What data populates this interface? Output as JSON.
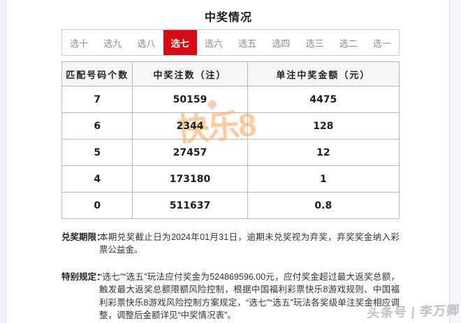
{
  "page": {
    "title": "中奖情况"
  },
  "tabs": {
    "items": [
      {
        "label": "选十",
        "selected": false
      },
      {
        "label": "选九",
        "selected": false
      },
      {
        "label": "选八",
        "selected": false
      },
      {
        "label": "选七",
        "selected": true
      },
      {
        "label": "选六",
        "selected": false
      },
      {
        "label": "选五",
        "selected": false
      },
      {
        "label": "选四",
        "selected": false
      },
      {
        "label": "选三",
        "selected": false
      },
      {
        "label": "选二",
        "selected": false
      },
      {
        "label": "选一",
        "selected": false
      }
    ]
  },
  "table": {
    "headers": [
      "匹配号码个数",
      "中奖注数（注）",
      "单注中奖金额（元）"
    ],
    "rows": [
      [
        "7",
        "50159",
        "4475"
      ],
      [
        "6",
        "2344",
        "128"
      ],
      [
        "5",
        "27457",
        "12"
      ],
      [
        "4",
        "173180",
        "1"
      ],
      [
        "0",
        "511637",
        "0.8"
      ]
    ]
  },
  "notes": [
    {
      "label": "兑奖期限：",
      "text": "本期兑奖截止日为2024年01月31日，逾期未兑奖视为弃奖，弃奖奖金纳入彩票公益金。"
    },
    {
      "label": "特别规定：",
      "text": "“选七”“选五”玩法应付奖金为524869596.00元，应付奖金超过最大返奖总额，触发最大返奖总额限额风险控制，根据中国福利彩票快乐8游戏规则、中国福利彩票快乐8游戏风险控制方案规定，“选七”“选五”玩法各奖级单注奖金相应调整，调整后金额详见“中奖情况表”。"
    }
  ],
  "watermarks": {
    "logo_text": "快乐8",
    "logo_crown": "◆",
    "credit_text": "头条号 | 李万卿"
  },
  "colors": {
    "accent_red": "#d80b14",
    "gutter_blue": "#eef1f9"
  }
}
